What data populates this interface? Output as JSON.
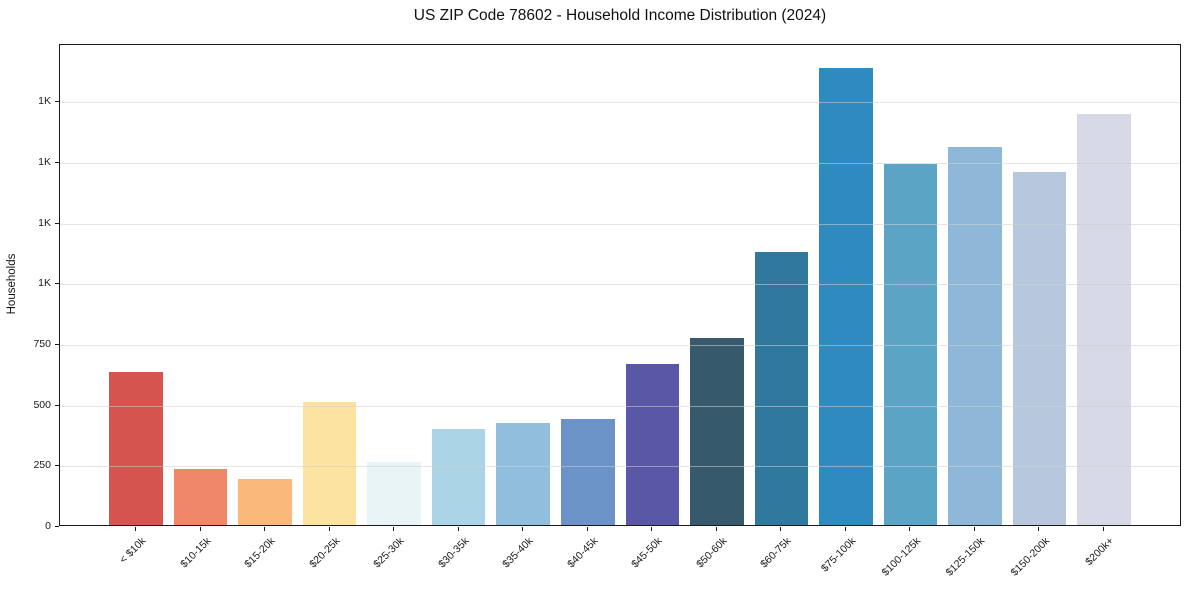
{
  "title": "US ZIP Code 78602 - Household Income Distribution (2024)",
  "chart_data": {
    "type": "bar",
    "title": "US ZIP Code 78602 - Household Income Distribution (2024)",
    "xlabel": "",
    "ylabel": "Households",
    "categories": [
      "< $10k",
      "$10-15k",
      "$15-20k",
      "$20-25k",
      "$25-30k",
      "$30-35k",
      "$35-40k",
      "$40-45k",
      "$45-50k",
      "$50-60k",
      "$60-75k",
      "$75-100k",
      "$100-125k",
      "$125-150k",
      "$150-200k",
      "$200k+"
    ],
    "values": [
      632,
      232,
      190,
      505,
      258,
      394,
      422,
      436,
      662,
      772,
      1124,
      1883,
      1488,
      1558,
      1452,
      1692
    ],
    "bar_colors": [
      "#d6544f",
      "#ef8768",
      "#fab97b",
      "#fce3a0",
      "#e9f4f7",
      "#abd5e6",
      "#92bedd",
      "#6b93c7",
      "#5a57a7",
      "#36596b",
      "#30789d",
      "#2f8ac0",
      "#5ba4c6",
      "#8fb8d8",
      "#b7c8de",
      "#d7d9e6"
    ],
    "ylim": [
      0,
      1985
    ],
    "yticks": [
      {
        "value": 0,
        "label": "0"
      },
      {
        "value": 250,
        "label": "250"
      },
      {
        "value": 500,
        "label": "500"
      },
      {
        "value": 750,
        "label": "750"
      },
      {
        "value": 1000,
        "label": "1K"
      },
      {
        "value": 1250,
        "label": "1K"
      },
      {
        "value": 1500,
        "label": "1K"
      },
      {
        "value": 1750,
        "label": "1K"
      }
    ],
    "grid": "horizontal",
    "legend": "none",
    "background_color": "#ffffff",
    "gridline_color": "#e9e9e9",
    "x_tick_rotation_deg": 45
  }
}
